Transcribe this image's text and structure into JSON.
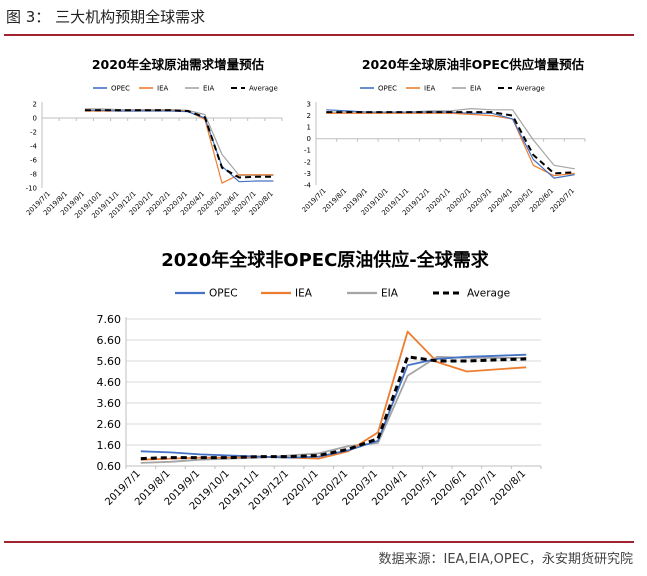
{
  "figure": {
    "title": "图 3： 三大机构预期全球需求",
    "source": "数据来源：IEA,EIA,OPEC，永安期货研究院"
  },
  "colors": {
    "OPEC": "#4472c4",
    "IEA": "#ed7d31",
    "EIA": "#a5a5a5",
    "Average": "#000000",
    "rule": "#a0232f"
  },
  "chart_data": [
    {
      "type": "line",
      "title": "2020年全球原油需求增量预估",
      "categories": [
        "2019/7/1",
        "2019/8/1",
        "2019/9/1",
        "2019/10/1",
        "2019/11/1",
        "2019/12/1",
        "2020/1/1",
        "2020/2/1",
        "2020/3/1",
        "2020/4/1",
        "2020/5/1",
        "2020/6/1",
        "2020/7/1",
        "2020/8/1"
      ],
      "ylim": [
        -10,
        2
      ],
      "yticks": [
        "2",
        "0",
        "-2",
        "-4",
        "-6",
        "-8",
        "-10"
      ],
      "yticks_num": [
        2,
        0,
        -2,
        -4,
        -6,
        -8,
        -10
      ],
      "legend": [
        "OPEC",
        "IEA",
        "EIA",
        "Average"
      ],
      "grid": false,
      "series": [
        {
          "name": "OPEC",
          "values": [
            null,
            null,
            1.1,
            1.1,
            1.0,
            1.0,
            1.0,
            1.0,
            0.9,
            0.0,
            -6.9,
            -9.1,
            -9.0,
            -9.0
          ]
        },
        {
          "name": "IEA",
          "values": [
            null,
            null,
            1.0,
            1.0,
            1.0,
            1.0,
            1.1,
            1.1,
            1.0,
            -0.2,
            -9.3,
            -8.1,
            -8.1,
            -8.1
          ]
        },
        {
          "name": "EIA",
          "values": [
            null,
            null,
            1.3,
            1.3,
            1.2,
            1.2,
            1.2,
            1.2,
            1.1,
            0.5,
            -5.2,
            -8.2,
            -8.2,
            -8.2
          ]
        },
        {
          "name": "Average",
          "values": [
            null,
            null,
            1.1,
            1.1,
            1.1,
            1.1,
            1.1,
            1.1,
            1.0,
            0.1,
            -7.1,
            -8.5,
            -8.4,
            -8.4
          ]
        }
      ]
    },
    {
      "type": "line",
      "title": "2020年全球原油非OPEC供应增量预估",
      "categories": [
        "2019/7/1",
        "2019/8/1",
        "2019/9/1",
        "2019/10/1",
        "2019/11/1",
        "2019/12/1",
        "2020/1/1",
        "2020/2/1",
        "2020/3/1",
        "2020/4/1",
        "2020/5/1",
        "2020/6/1",
        "2020/7/1"
      ],
      "ylim": [
        -4,
        3
      ],
      "yticks": [
        "3",
        "2",
        "1",
        "0",
        "-1",
        "-2",
        "-3",
        "-4"
      ],
      "yticks_num": [
        3,
        2,
        1,
        0,
        -1,
        -2,
        -3,
        -4
      ],
      "legend": [
        "OPEC",
        "IEA",
        "EIA",
        "Average"
      ],
      "grid": false,
      "series": [
        {
          "name": "OPEC",
          "values": [
            2.5,
            2.4,
            2.3,
            2.3,
            2.3,
            2.3,
            2.3,
            2.2,
            2.2,
            1.7,
            -1.8,
            -3.4,
            -3.1
          ]
        },
        {
          "name": "IEA",
          "values": [
            2.2,
            2.2,
            2.2,
            2.2,
            2.2,
            2.2,
            2.2,
            2.1,
            2.0,
            1.7,
            -2.3,
            -3.2,
            -3.0
          ]
        },
        {
          "name": "EIA",
          "values": [
            2.3,
            2.3,
            2.3,
            2.3,
            2.3,
            2.4,
            2.4,
            2.6,
            2.5,
            2.5,
            -0.1,
            -2.3,
            -2.6
          ]
        },
        {
          "name": "Average",
          "values": [
            2.3,
            2.3,
            2.3,
            2.3,
            2.3,
            2.3,
            2.3,
            2.3,
            2.3,
            2.0,
            -1.4,
            -3.0,
            -2.9
          ]
        }
      ]
    },
    {
      "type": "line",
      "title": "2020年全球非OPEC原油供应-全球需求",
      "categories": [
        "2019/7/1",
        "2019/8/1",
        "2019/9/1",
        "2019/10/1",
        "2019/11/1",
        "2019/12/1",
        "2020/1/1",
        "2020/2/1",
        "2020/3/1",
        "2020/4/1",
        "2020/5/1",
        "2020/6/1",
        "2020/7/1",
        "2020/8/1"
      ],
      "ylim": [
        0.6,
        7.6
      ],
      "yticks": [
        "7.60",
        "6.60",
        "5.60",
        "4.60",
        "3.60",
        "2.60",
        "1.60",
        "0.60"
      ],
      "yticks_num": [
        7.6,
        6.6,
        5.6,
        4.6,
        3.6,
        2.6,
        1.6,
        0.6
      ],
      "legend": [
        "OPEC",
        "IEA",
        "EIA",
        "Average"
      ],
      "grid": true,
      "series": [
        {
          "name": "OPEC",
          "values": [
            1.3,
            1.25,
            1.15,
            1.1,
            1.05,
            1.0,
            1.05,
            1.35,
            1.8,
            5.4,
            5.7,
            5.8,
            5.85,
            5.9
          ]
        },
        {
          "name": "IEA",
          "values": [
            0.9,
            0.95,
            1.0,
            1.0,
            1.05,
            1.0,
            0.95,
            1.3,
            2.2,
            7.0,
            5.55,
            5.1,
            5.2,
            5.3
          ]
        },
        {
          "name": "EIA",
          "values": [
            0.75,
            0.8,
            0.9,
            0.95,
            1.0,
            1.1,
            1.2,
            1.55,
            1.7,
            4.9,
            5.8,
            5.75,
            5.75,
            5.75
          ]
        },
        {
          "name": "Average",
          "values": [
            0.95,
            1.0,
            1.0,
            1.0,
            1.05,
            1.05,
            1.1,
            1.4,
            1.9,
            5.8,
            5.6,
            5.6,
            5.65,
            5.7
          ]
        }
      ]
    }
  ]
}
